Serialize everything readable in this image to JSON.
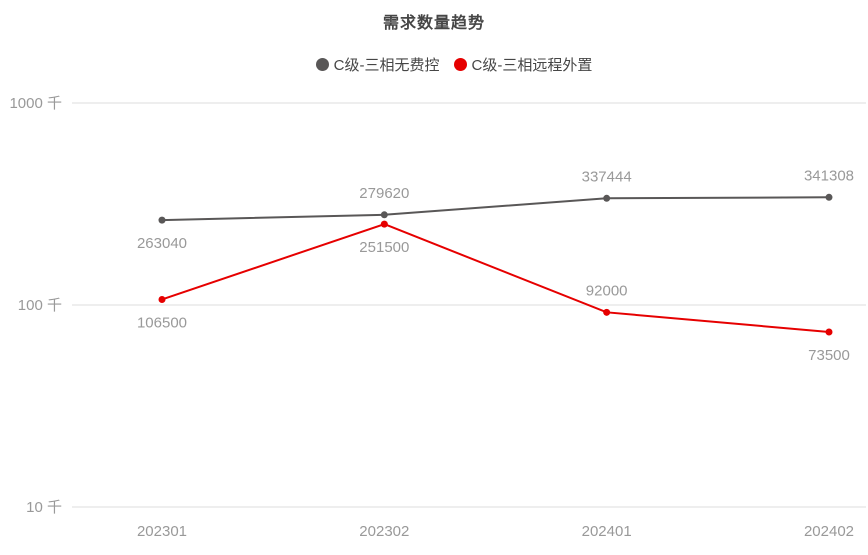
{
  "chart_data": {
    "type": "line",
    "title": "需求数量趋势",
    "categories": [
      "202301",
      "202302",
      "202401",
      "202402"
    ],
    "series": [
      {
        "name": "C级-三相无费控",
        "color": "#595757",
        "values": [
          263040,
          279620,
          337444,
          341308
        ],
        "label_positions": [
          "below",
          "above",
          "above",
          "above"
        ]
      },
      {
        "name": "C级-三相远程外置",
        "color": "#e60000",
        "values": [
          106500,
          251500,
          92000,
          73500
        ],
        "label_positions": [
          "below",
          "below",
          "above",
          "below"
        ]
      }
    ],
    "y_axis": {
      "scale": "log",
      "unit": "千",
      "ticks": [
        {
          "value": 10000,
          "label": "10 千"
        },
        {
          "value": 100000,
          "label": "100 千"
        },
        {
          "value": 1000000,
          "label": "1000 千"
        }
      ],
      "range": [
        10000,
        1000000
      ]
    },
    "grid": true,
    "legend_position": "top",
    "label_color": "#999999",
    "grid_color": "#eeeeee"
  }
}
